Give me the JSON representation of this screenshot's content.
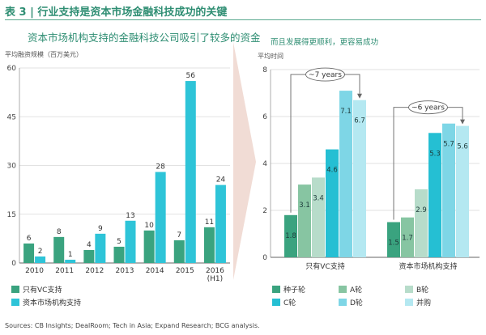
{
  "title": "表 3 | 行业支持是资本市场金融科技成功的关键",
  "left_subtitle": "资本市场机构支持的金融科技公司吸引了较多的资金",
  "right_subtitle": "而且发展得更顺利，更容易成功",
  "sources": "Sources: CB Insights; DealRoom; Tech in Asia; Expand Research; BCG analysis.",
  "colors": {
    "title": "#2f8e73",
    "green": "#3aa37f",
    "cyan": "#2ec4d8",
    "seed": "#3aa37f",
    "a_round": "#87c5a2",
    "b_round": "#b7dcca",
    "c_round": "#25bfd3",
    "d_round": "#7ed6e6",
    "ma": "#b4e8f1"
  },
  "chart_data": [
    {
      "type": "bar",
      "title": "资本市场机构支持的金融科技公司吸引了较多的资金",
      "ylabel": "平均融资规模（百万美元）",
      "categories": [
        "2010",
        "2011",
        "2012",
        "2013",
        "2014",
        "2015",
        "2016\n(H1)"
      ],
      "category_labels": [
        [
          "2010"
        ],
        [
          "2011"
        ],
        [
          "2012"
        ],
        [
          "2013"
        ],
        [
          "2014"
        ],
        [
          "2015"
        ],
        [
          "2016",
          "(H1)"
        ]
      ],
      "yticks": [
        "0",
        "15",
        "30",
        "45",
        "60"
      ],
      "ylim": [
        0,
        60
      ],
      "series": [
        {
          "name": "只有VC支持",
          "color": "#3aa37f",
          "values": [
            6,
            8,
            4,
            5,
            10,
            7,
            11
          ]
        },
        {
          "name": "资本市场机构支持",
          "color": "#2ec4d8",
          "values": [
            2,
            1,
            9,
            13,
            28,
            56,
            24
          ]
        }
      ],
      "legend": "bottom"
    },
    {
      "type": "bar",
      "title": "而且发展得更顺利，更容易成功",
      "ylabel": "平均时间",
      "categories": [
        "只有VC支持",
        "资本市场机构支持"
      ],
      "yticks": [
        "0",
        "2",
        "4",
        "6",
        "8"
      ],
      "ylim": [
        0,
        8
      ],
      "series": [
        {
          "name": "种子轮",
          "color": "#3aa37f",
          "values": [
            1.8,
            1.5
          ]
        },
        {
          "name": "A轮",
          "color": "#87c5a2",
          "values": [
            3.1,
            1.7
          ]
        },
        {
          "name": "B轮",
          "color": "#b7dcca",
          "values": [
            3.4,
            2.9
          ]
        },
        {
          "name": "C轮",
          "color": "#25bfd3",
          "values": [
            4.6,
            5.3
          ]
        },
        {
          "name": "D轮",
          "color": "#7ed6e6",
          "values": [
            7.1,
            5.7
          ]
        },
        {
          "name": "并购",
          "color": "#b4e8f1",
          "values": [
            6.7,
            5.6
          ]
        }
      ],
      "annotations": [
        {
          "group": "只有VC支持",
          "text": "~7 years"
        },
        {
          "group": "资本市场机构支持",
          "text": "~6 years"
        }
      ],
      "legend": "bottom"
    }
  ]
}
